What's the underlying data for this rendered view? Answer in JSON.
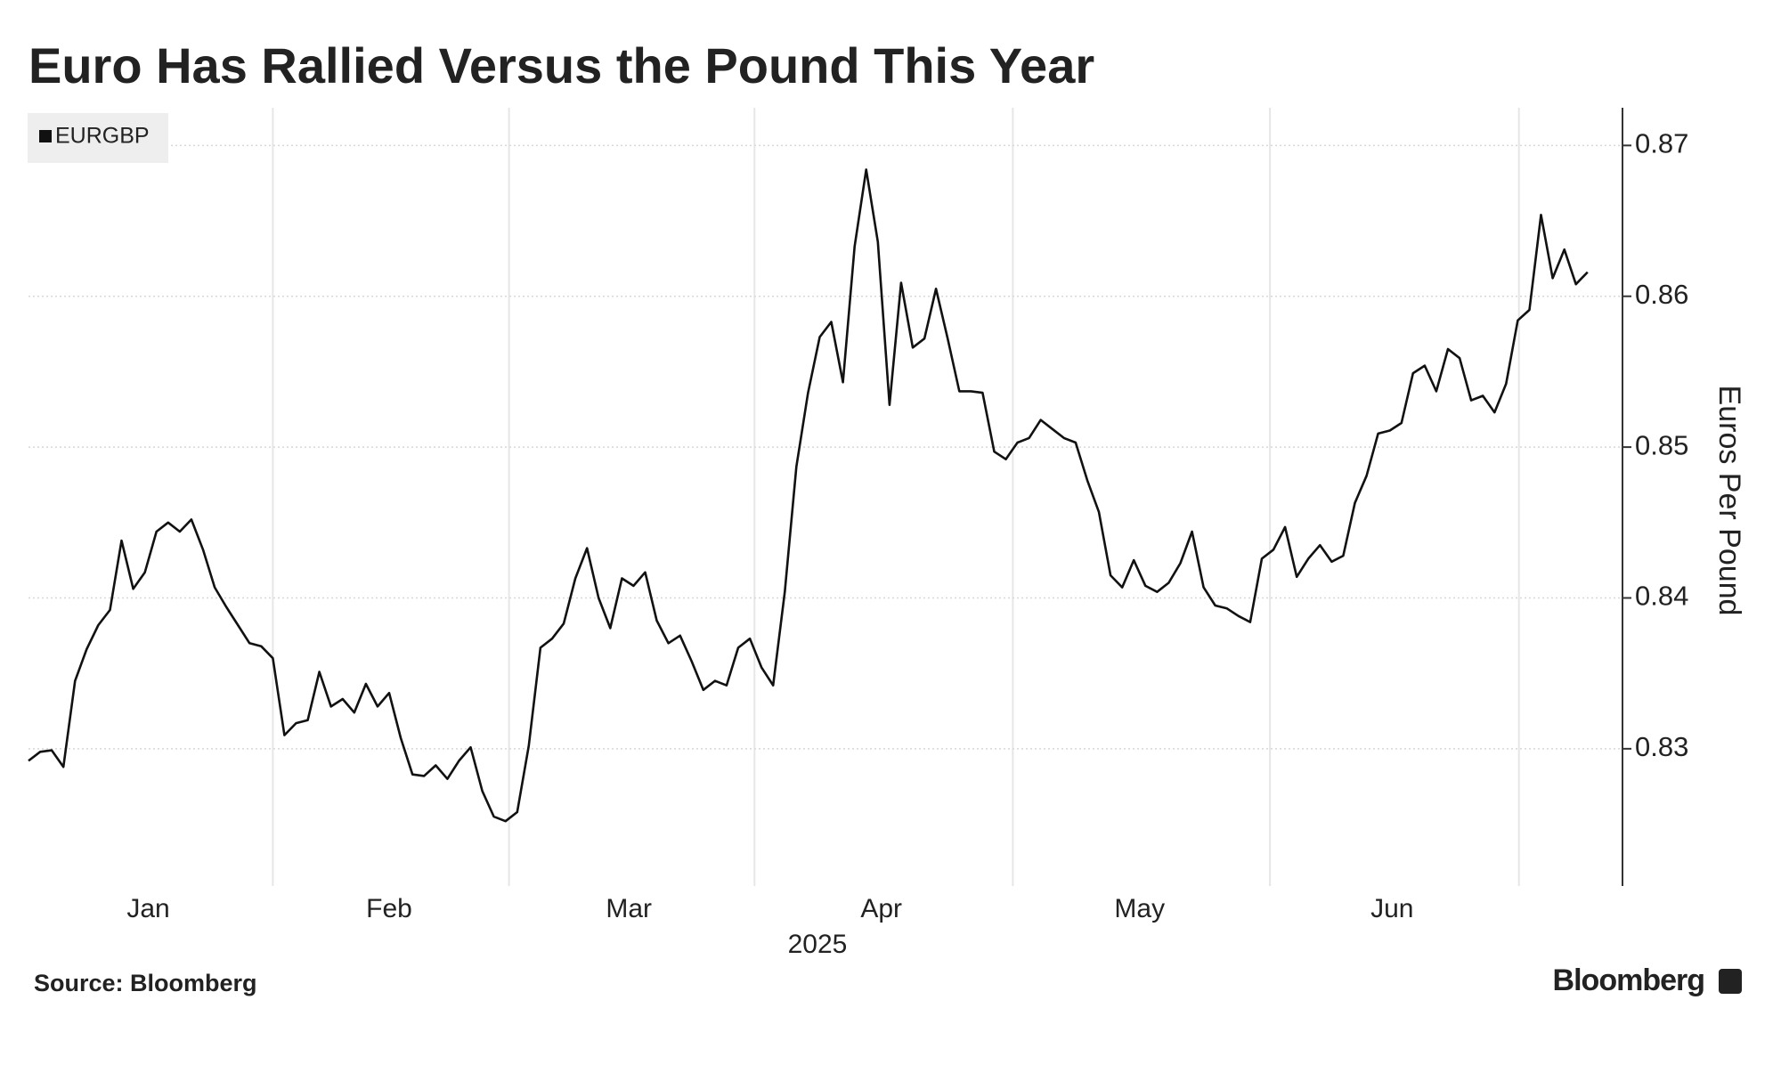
{
  "chart_data": {
    "type": "line",
    "title": "Euro Has Rallied Versus the Pound This Year",
    "ylabel": "Euros Per Pound",
    "xlabel": "2025",
    "source": "Source: Bloomberg",
    "brand": "Bloomberg",
    "series": [
      {
        "name": "EURGBP",
        "color": "#111111",
        "values": [
          0.8292,
          0.8298,
          0.8299,
          0.8288,
          0.8345,
          0.8366,
          0.8382,
          0.8392,
          0.8438,
          0.8406,
          0.8417,
          0.8444,
          0.845,
          0.8444,
          0.8452,
          0.8432,
          0.8407,
          0.8394,
          0.8382,
          0.837,
          0.8368,
          0.836,
          0.8309,
          0.8317,
          0.8319,
          0.8351,
          0.8328,
          0.8333,
          0.8324,
          0.8343,
          0.8328,
          0.8337,
          0.8307,
          0.8283,
          0.8282,
          0.8289,
          0.828,
          0.8292,
          0.8301,
          0.8272,
          0.8255,
          0.8252,
          0.8258,
          0.8302,
          0.8367,
          0.8373,
          0.8383,
          0.8413,
          0.8433,
          0.84,
          0.838,
          0.8413,
          0.8408,
          0.8417,
          0.8385,
          0.837,
          0.8375,
          0.8358,
          0.8339,
          0.8345,
          0.8342,
          0.8367,
          0.8373,
          0.8354,
          0.8342,
          0.8404,
          0.8487,
          0.8536,
          0.8573,
          0.8583,
          0.8543,
          0.8633,
          0.8684,
          0.8636,
          0.8528,
          0.8609,
          0.8566,
          0.8572,
          0.8605,
          0.8572,
          0.8537,
          0.8537,
          0.8536,
          0.8497,
          0.8492,
          0.8503,
          0.8506,
          0.8518,
          0.8512,
          0.8506,
          0.8503,
          0.8478,
          0.8457,
          0.8415,
          0.8407,
          0.8425,
          0.8408,
          0.8404,
          0.841,
          0.8423,
          0.8444,
          0.8407,
          0.8395,
          0.8393,
          0.8388,
          0.8384,
          0.8426,
          0.8432,
          0.8447,
          0.8414,
          0.8426,
          0.8435,
          0.8424,
          0.8428,
          0.8463,
          0.8481,
          0.8509,
          0.8511,
          0.8516,
          0.8549,
          0.8554,
          0.8537,
          0.8565,
          0.8559,
          0.8531,
          0.8534,
          0.8523,
          0.8542,
          0.8584,
          0.8591,
          0.8654,
          0.8612,
          0.8631,
          0.8608,
          0.8616
        ]
      }
    ],
    "xlim": [
      0,
      137
    ],
    "xticks": [
      {
        "value": 10.3,
        "label": "Jan"
      },
      {
        "value": 31,
        "label": "Feb"
      },
      {
        "value": 51.6,
        "label": "Mar"
      },
      {
        "value": 73.3,
        "label": "Apr"
      },
      {
        "value": 95.5,
        "label": "May"
      },
      {
        "value": 117.2,
        "label": "Jun"
      }
    ],
    "xgridlines": [
      21,
      41.3,
      62.4,
      84.6,
      106.7,
      128.1
    ],
    "ylim": [
      0.8209,
      0.8725
    ],
    "yticks": [
      0.83,
      0.84,
      0.85,
      0.86,
      0.87
    ],
    "grid": true,
    "legend": "upper left"
  }
}
